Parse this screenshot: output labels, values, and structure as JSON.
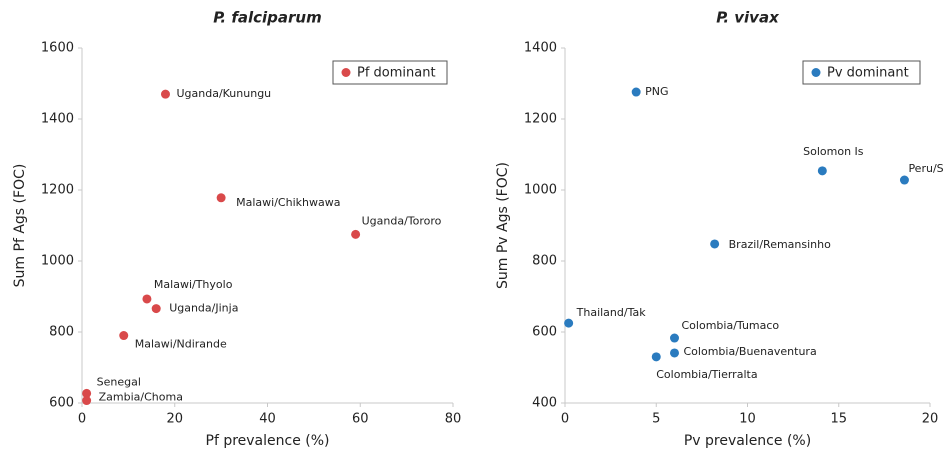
{
  "chart_data": [
    {
      "type": "scatter",
      "title": "P. falciparum",
      "x_label": "Pf prevalence (%)",
      "y_label": "Sum Pf Ags (FOC)",
      "xlim": [
        0,
        80
      ],
      "ylim": [
        600,
        1600
      ],
      "xticks": [
        0,
        20,
        40,
        60,
        80
      ],
      "yticks": [
        600,
        800,
        1000,
        1200,
        1400,
        1600
      ],
      "legend": "upper right",
      "series": [
        {
          "name": "Pf dominant",
          "color": "#d9494a",
          "x": [
            18,
            30,
            59,
            14,
            16,
            9,
            1,
            1
          ],
          "values": [
            1470,
            1178,
            1075,
            893,
            866,
            790,
            627,
            607
          ],
          "labels": [
            "Uganda/Kunungu",
            "Malawi/Chikhwawa",
            "Uganda/Tororo",
            "Malawi/Thyolo",
            "Uganda/Jinja",
            "Malawi/Ndirande",
            "Senegal",
            "Zambia/Choma"
          ]
        }
      ]
    },
    {
      "type": "scatter",
      "title": "P. vivax",
      "x_label": "Pv prevalence (%)",
      "y_label": "Sum Pv Ags (FOC)",
      "xlim": [
        0,
        20
      ],
      "ylim": [
        400,
        1400
      ],
      "xticks": [
        0,
        5,
        10,
        15,
        20
      ],
      "yticks": [
        400,
        600,
        800,
        1000,
        1200,
        1400
      ],
      "legend": "upper right",
      "series": [
        {
          "name": "Pv dominant",
          "color": "#2a7bbf",
          "x": [
            3.9,
            14.1,
            18.6,
            8.2,
            0.2,
            6,
            6,
            5
          ],
          "values": [
            1276,
            1054,
            1028,
            848,
            625,
            583,
            541,
            530
          ],
          "labels": [
            "PNG",
            "Solomon Is",
            "Peru/Santa Emilia",
            "Brazil/Remansinho",
            "Thailand/Tak",
            "Colombia/Tumaco",
            "Colombia/Buenaventura",
            "Colombia/Tierralta"
          ]
        }
      ]
    }
  ]
}
